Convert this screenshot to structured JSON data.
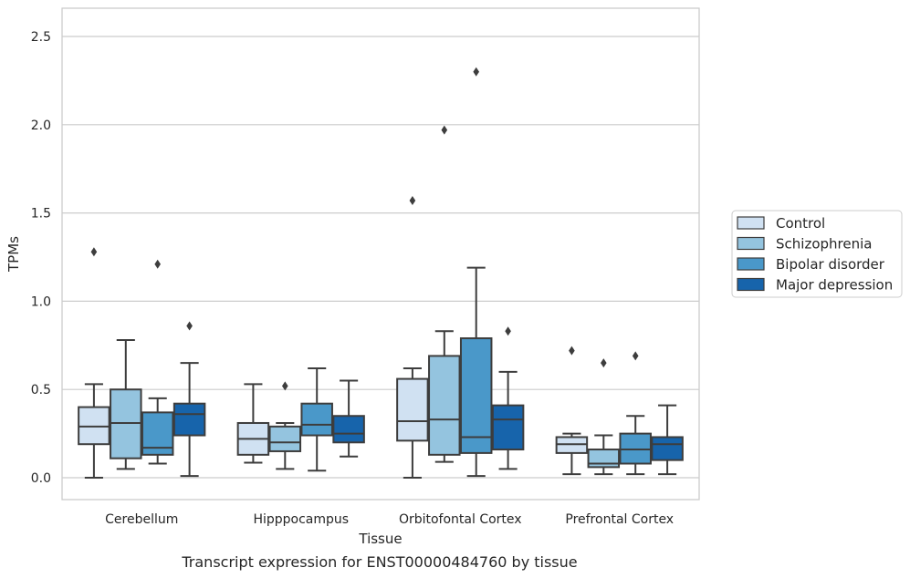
{
  "caption": "Transcript expression for ENST00000484760 by tissue",
  "chart_data": {
    "type": "box",
    "xlabel": "Tissue",
    "ylabel": "TPMs",
    "ylim": [
      -0.12,
      2.66
    ],
    "yticks": [
      "0.0",
      "0.5",
      "1.0",
      "1.5",
      "2.0",
      "2.5"
    ],
    "grid": "horizontal",
    "legend_position": "right",
    "categories": [
      "Cerebellum",
      "Hipppocampus",
      "Orbitofontal Cortex",
      "Prefrontal Cortex"
    ],
    "series": [
      {
        "name": "Control",
        "color": "#d0e1f2",
        "boxes": [
          {
            "whislo": 0.0,
            "q1": 0.19,
            "med": 0.29,
            "q3": 0.4,
            "whishi": 0.53,
            "fliers": [
              1.28
            ]
          },
          {
            "whislo": 0.085,
            "q1": 0.13,
            "med": 0.22,
            "q3": 0.31,
            "whishi": 0.53,
            "fliers": []
          },
          {
            "whislo": 0.0,
            "q1": 0.21,
            "med": 0.32,
            "q3": 0.56,
            "whishi": 0.62,
            "fliers": [
              1.57
            ]
          },
          {
            "whislo": 0.02,
            "q1": 0.14,
            "med": 0.19,
            "q3": 0.23,
            "whishi": 0.25,
            "fliers": [
              0.72
            ]
          }
        ]
      },
      {
        "name": "Schizophrenia",
        "color": "#94c4df",
        "boxes": [
          {
            "whislo": 0.05,
            "q1": 0.11,
            "med": 0.31,
            "q3": 0.5,
            "whishi": 0.78,
            "fliers": []
          },
          {
            "whislo": 0.05,
            "q1": 0.15,
            "med": 0.2,
            "q3": 0.29,
            "whishi": 0.31,
            "fliers": [
              0.52
            ]
          },
          {
            "whislo": 0.09,
            "q1": 0.13,
            "med": 0.33,
            "q3": 0.69,
            "whishi": 0.83,
            "fliers": [
              1.97
            ]
          },
          {
            "whislo": 0.02,
            "q1": 0.06,
            "med": 0.08,
            "q3": 0.16,
            "whishi": 0.24,
            "fliers": [
              0.65
            ]
          }
        ]
      },
      {
        "name": "Bipolar disorder",
        "color": "#4a98c9",
        "boxes": [
          {
            "whislo": 0.08,
            "q1": 0.13,
            "med": 0.17,
            "q3": 0.37,
            "whishi": 0.45,
            "fliers": [
              1.21
            ]
          },
          {
            "whislo": 0.04,
            "q1": 0.24,
            "med": 0.3,
            "q3": 0.42,
            "whishi": 0.62,
            "fliers": []
          },
          {
            "whislo": 0.01,
            "q1": 0.14,
            "med": 0.23,
            "q3": 0.79,
            "whishi": 1.19,
            "fliers": [
              2.3
            ]
          },
          {
            "whislo": 0.02,
            "q1": 0.08,
            "med": 0.16,
            "q3": 0.25,
            "whishi": 0.35,
            "fliers": [
              0.69
            ]
          }
        ]
      },
      {
        "name": "Major depression",
        "color": "#1764ab",
        "boxes": [
          {
            "whislo": 0.01,
            "q1": 0.24,
            "med": 0.36,
            "q3": 0.42,
            "whishi": 0.65,
            "fliers": [
              0.86
            ]
          },
          {
            "whislo": 0.12,
            "q1": 0.2,
            "med": 0.25,
            "q3": 0.35,
            "whishi": 0.55,
            "fliers": []
          },
          {
            "whislo": 0.05,
            "q1": 0.16,
            "med": 0.33,
            "q3": 0.41,
            "whishi": 0.6,
            "fliers": [
              0.83
            ]
          },
          {
            "whislo": 0.02,
            "q1": 0.1,
            "med": 0.19,
            "q3": 0.23,
            "whishi": 0.41,
            "fliers": []
          }
        ]
      }
    ]
  }
}
